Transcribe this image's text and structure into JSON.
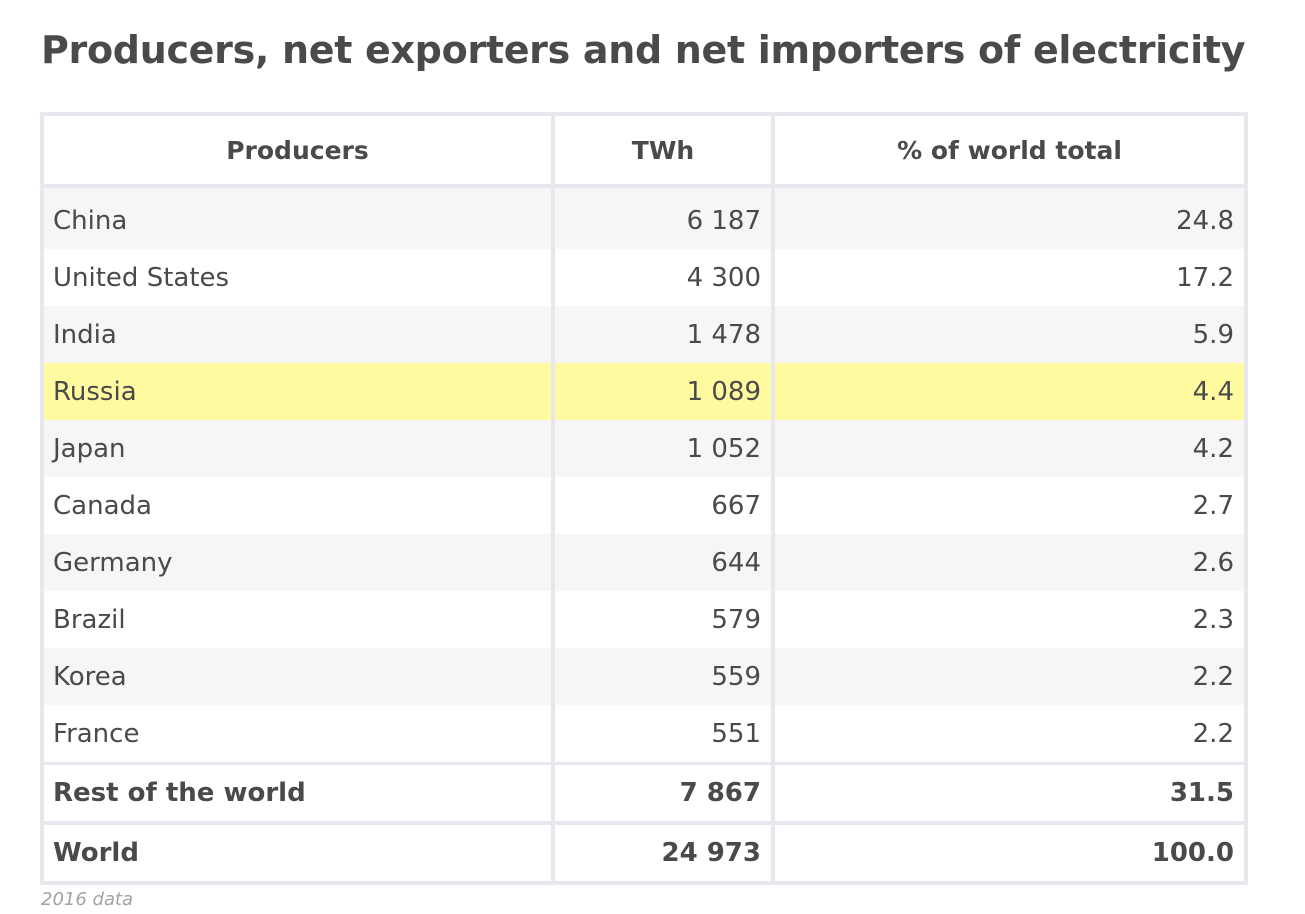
{
  "title": "Producers, net exporters and net importers of electricity",
  "caption": "2016 data",
  "colors": {
    "highlight": "#fffa9f",
    "row_odd": "#ffffff",
    "row_even": "#f6f6f7",
    "grid": "#e6e8ee"
  },
  "chart_data": {
    "type": "table",
    "columns": [
      "Producers",
      "TWh",
      "% of world total"
    ],
    "rows": [
      {
        "producer": "China",
        "twh": "6 187",
        "pct": "24.8"
      },
      {
        "producer": "United States",
        "twh": "4 300",
        "pct": "17.2"
      },
      {
        "producer": "India",
        "twh": "1 478",
        "pct": "5.9"
      },
      {
        "producer": "Russia",
        "twh": "1 089",
        "pct": "4.4",
        "highlighted": true
      },
      {
        "producer": "Japan",
        "twh": "1 052",
        "pct": "4.2"
      },
      {
        "producer": "Canada",
        "twh": "667",
        "pct": "2.7"
      },
      {
        "producer": "Germany",
        "twh": "644",
        "pct": "2.6"
      },
      {
        "producer": "Brazil",
        "twh": "579",
        "pct": "2.3"
      },
      {
        "producer": "Korea",
        "twh": "559",
        "pct": "2.2"
      },
      {
        "producer": "France",
        "twh": "551",
        "pct": "2.2"
      }
    ],
    "totals": [
      {
        "producer": "Rest of the world",
        "twh": "7 867",
        "pct": "31.5"
      },
      {
        "producer": "World",
        "twh": "24 973",
        "pct": "100.0"
      }
    ]
  }
}
